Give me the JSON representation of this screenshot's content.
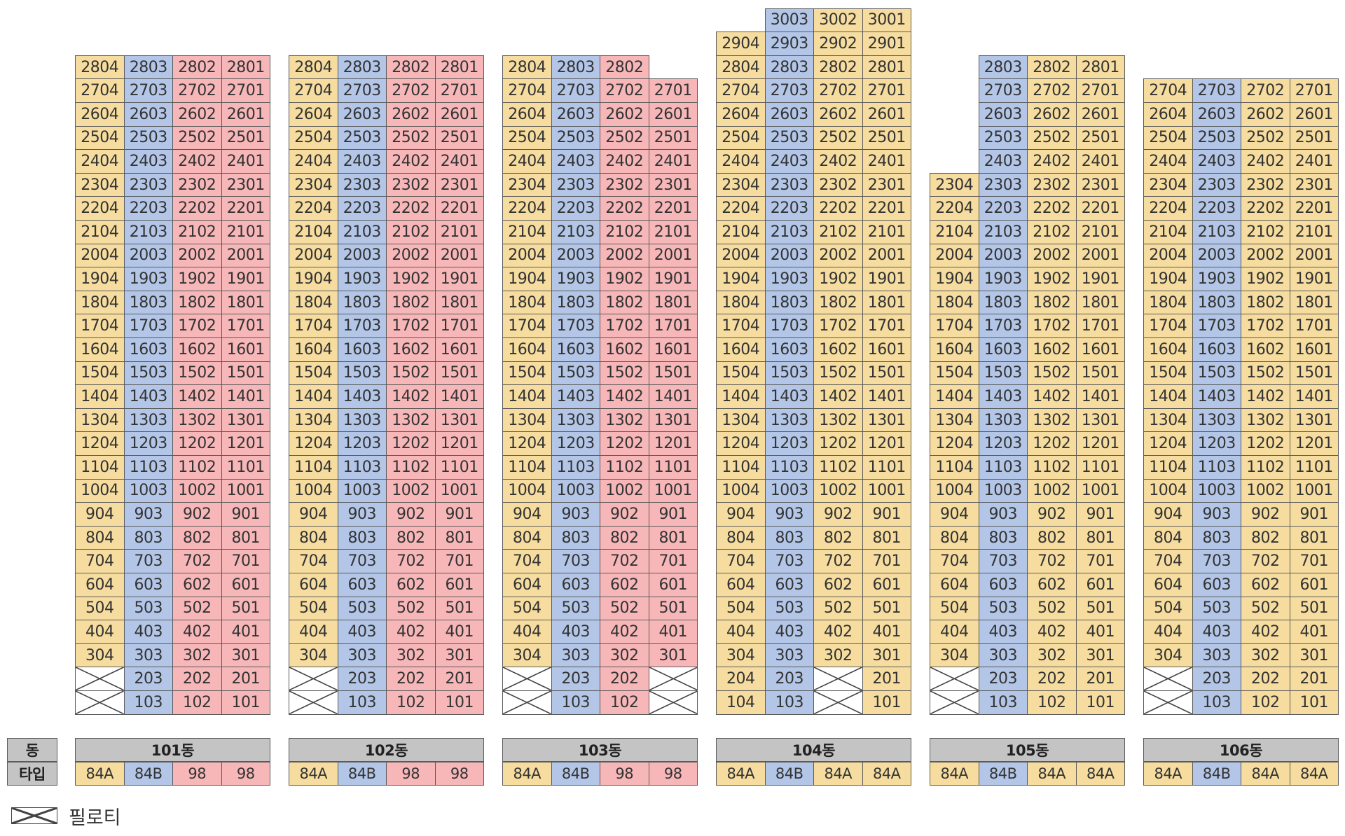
{
  "colors": {
    "84A": "#f6dd9f",
    "84B": "#b3c6e7",
    "98": "#f7b7b9",
    "header_bg": "#c4c4c4",
    "pilotis": "#ffffff"
  },
  "header_labels": {
    "building": "동",
    "type": "타입"
  },
  "legend": {
    "icon": "pilotis-cross-icon",
    "label": "필로티"
  },
  "buildings": [
    {
      "name": "101동",
      "types": [
        "84A",
        "84B",
        "98",
        "98"
      ],
      "top_floor": [
        28,
        28,
        28,
        28
      ],
      "pilotis": {
        "1": [
          1,
          0,
          0,
          0
        ],
        "2": [
          1,
          0,
          0,
          0
        ]
      }
    },
    {
      "name": "102동",
      "types": [
        "84A",
        "84B",
        "98",
        "98"
      ],
      "top_floor": [
        28,
        28,
        28,
        28
      ],
      "pilotis": {
        "1": [
          1,
          0,
          0,
          0
        ],
        "2": [
          1,
          0,
          0,
          0
        ]
      }
    },
    {
      "name": "103동",
      "types": [
        "84A",
        "84B",
        "98",
        "98"
      ],
      "top_floor": [
        28,
        28,
        28,
        27
      ],
      "pilotis": {
        "1": [
          1,
          0,
          0,
          1
        ],
        "2": [
          1,
          0,
          0,
          1
        ]
      }
    },
    {
      "name": "104동",
      "types": [
        "84A",
        "84B",
        "84A",
        "84A"
      ],
      "top_floor": [
        29,
        30,
        30,
        30
      ],
      "pilotis": {
        "1": [
          0,
          0,
          1,
          0
        ],
        "2": [
          0,
          0,
          1,
          0
        ]
      }
    },
    {
      "name": "105동",
      "types": [
        "84A",
        "84B",
        "84A",
        "84A"
      ],
      "top_floor": [
        23,
        28,
        28,
        28
      ],
      "pilotis": {
        "1": [
          1,
          0,
          0,
          0
        ],
        "2": [
          1,
          0,
          0,
          0
        ]
      }
    },
    {
      "name": "106동",
      "types": [
        "84A",
        "84B",
        "84A",
        "84A"
      ],
      "top_floor": [
        27,
        27,
        27,
        27
      ],
      "pilotis": {
        "1": [
          1,
          0,
          0,
          0
        ],
        "2": [
          1,
          0,
          0,
          0
        ]
      }
    }
  ]
}
